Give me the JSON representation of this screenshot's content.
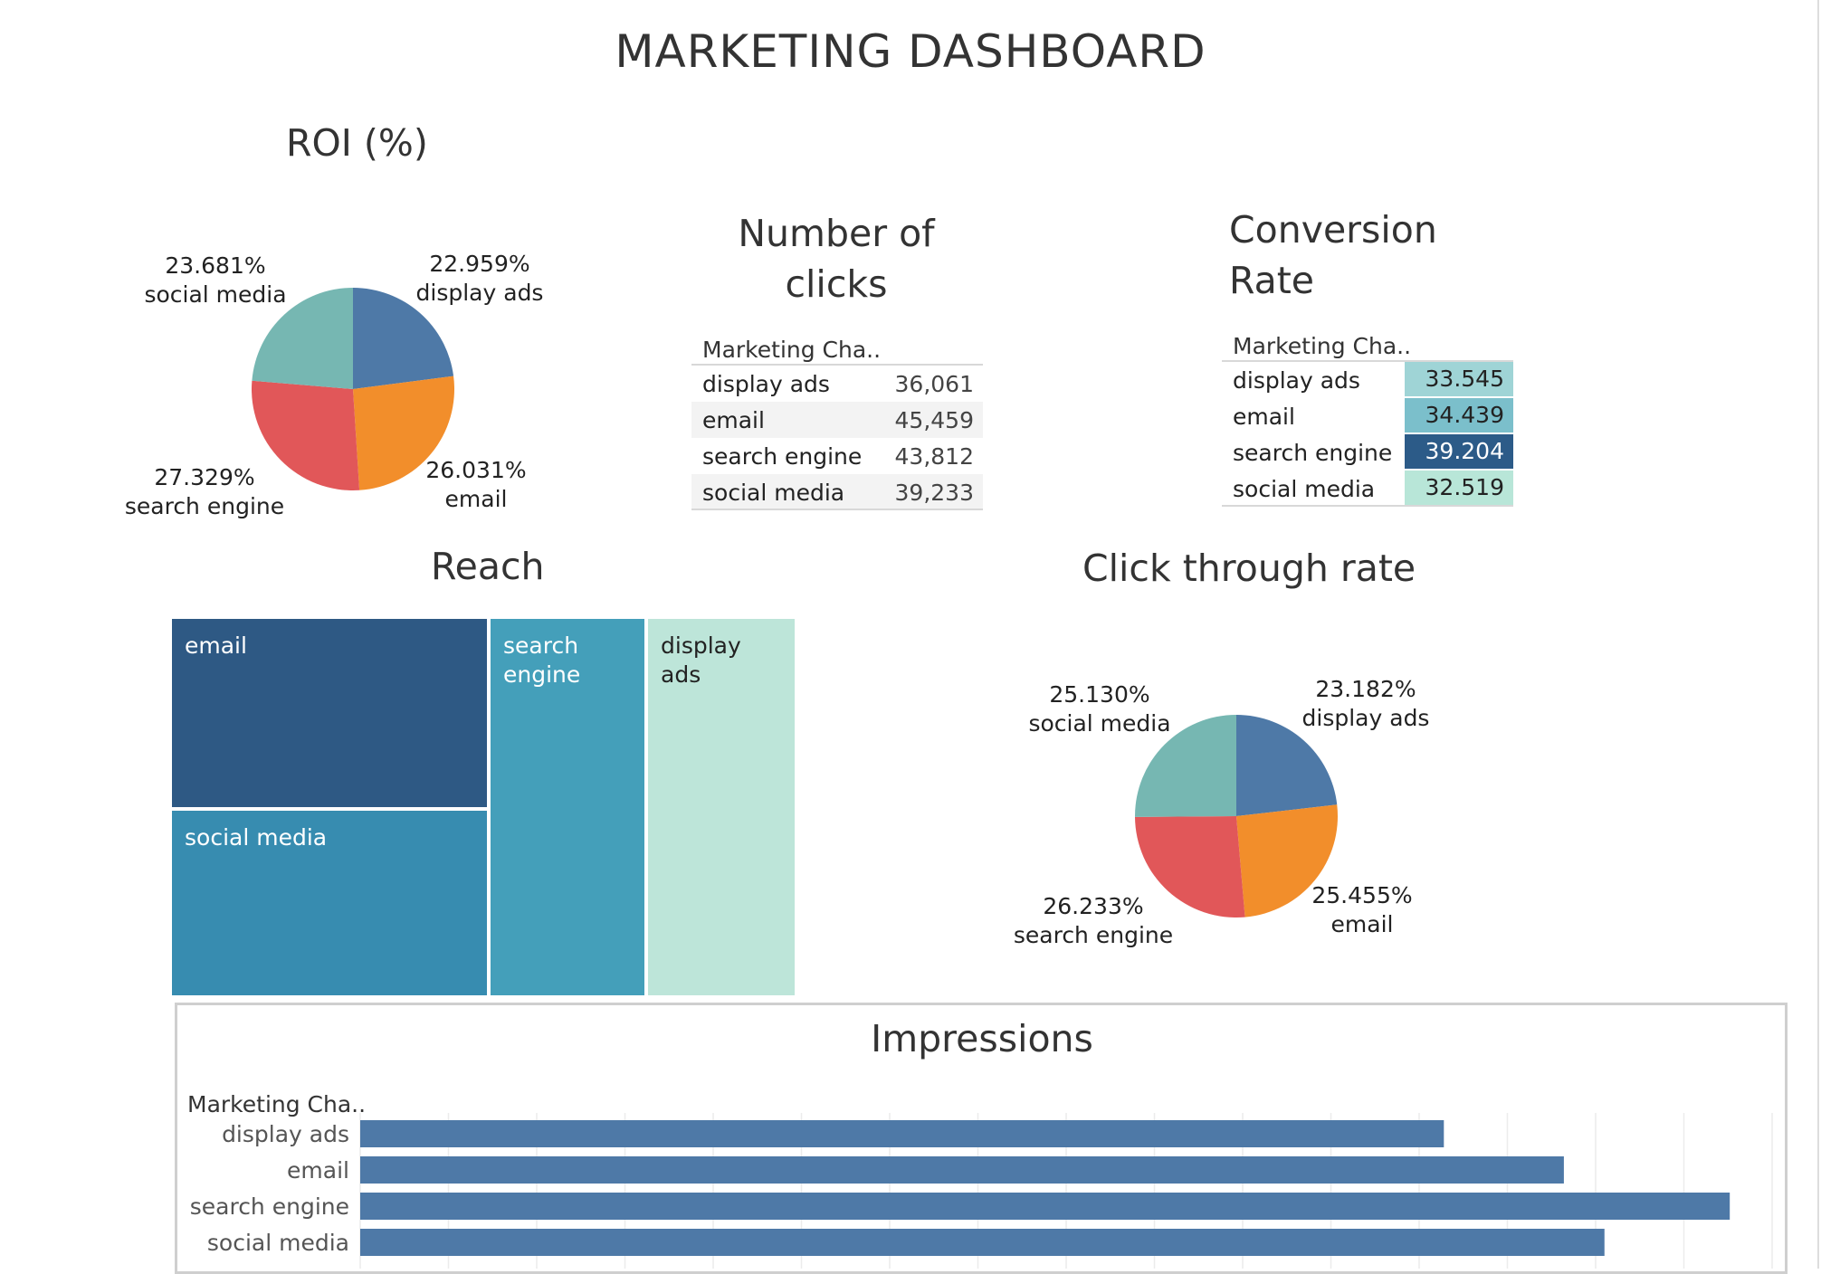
{
  "dashboard": {
    "title": "MARKETING DASHBOARD"
  },
  "roi": {
    "title": "ROI (%)",
    "labels": [
      {
        "value": "22.959%",
        "name": "display ads"
      },
      {
        "value": "26.031%",
        "name": "email"
      },
      {
        "value": "27.329%",
        "name": "search engine"
      },
      {
        "value": "23.681%",
        "name": "social media"
      }
    ]
  },
  "clicks": {
    "title_line1": "Number of",
    "title_line2": "clicks",
    "column_header": "Marketing Cha..",
    "rows": [
      {
        "name": "display ads",
        "value": "36,061"
      },
      {
        "name": "email",
        "value": "45,459"
      },
      {
        "name": "search engine",
        "value": "43,812"
      },
      {
        "name": "social media",
        "value": "39,233"
      }
    ]
  },
  "conversion": {
    "title_line1": "Conversion",
    "title_line2": "Rate",
    "column_header": "Marketing Cha..",
    "rows": [
      {
        "name": "display ads",
        "value": "33.545"
      },
      {
        "name": "email",
        "value": "34.439"
      },
      {
        "name": "search engine",
        "value": "39.204"
      },
      {
        "name": "social media",
        "value": "32.519"
      }
    ],
    "cell_colors": [
      "#9fd4d6",
      "#7bbfcb",
      "#2c5b88",
      "#b8e6d8"
    ]
  },
  "reach": {
    "title": "Reach",
    "labels": {
      "email": "email",
      "search_line1": "search",
      "search_line2": "engine",
      "display": "display ads",
      "social": "social media"
    },
    "colors": {
      "email": "#2e5984",
      "social": "#378cb0",
      "search": "#449fba",
      "display": "#bde5d9"
    }
  },
  "ctr": {
    "title": "Click through rate",
    "labels": [
      {
        "value": "23.182%",
        "name": "display ads"
      },
      {
        "value": "25.455%",
        "name": "email"
      },
      {
        "value": "26.233%",
        "name": "search engine"
      },
      {
        "value": "25.130%",
        "name": "social media"
      }
    ]
  },
  "impressions": {
    "title": "Impressions",
    "column_header": "Marketing Cha..",
    "categories": [
      "display ads",
      "email",
      "search engine",
      "social media"
    ]
  },
  "colors": {
    "display_ads": "#4e79a7",
    "email": "#f28e2b",
    "search_engine": "#e15759",
    "social_media": "#76b7b2",
    "impression_bar": "#4e79a7"
  },
  "chart_data": [
    {
      "type": "pie",
      "title": "ROI (%)",
      "categories": [
        "display ads",
        "email",
        "search engine",
        "social media"
      ],
      "values": [
        22.959,
        26.031,
        27.329,
        23.681
      ]
    },
    {
      "type": "table",
      "title": "Number of clicks",
      "categories": [
        "display ads",
        "email",
        "search engine",
        "social media"
      ],
      "values": [
        36061,
        45459,
        43812,
        39233
      ]
    },
    {
      "type": "heatmap",
      "title": "Conversion Rate",
      "categories": [
        "display ads",
        "email",
        "search engine",
        "social media"
      ],
      "values": [
        33.545,
        34.439,
        39.204,
        32.519
      ]
    },
    {
      "type": "bar",
      "title": "Reach",
      "categories": [
        "email",
        "social media",
        "search engine",
        "display ads"
      ],
      "values": [
        28,
        22,
        26,
        24
      ]
    },
    {
      "type": "pie",
      "title": "Click through rate",
      "categories": [
        "display ads",
        "email",
        "search engine",
        "social media"
      ],
      "values": [
        23.182,
        25.455,
        26.233,
        25.13
      ]
    },
    {
      "type": "bar",
      "title": "Impressions",
      "categories": [
        "display ads",
        "email",
        "search engine",
        "social media"
      ],
      "values": [
        61.4,
        68.2,
        77.6,
        70.5
      ],
      "xlim": [
        0,
        80
      ],
      "grid": true
    }
  ]
}
